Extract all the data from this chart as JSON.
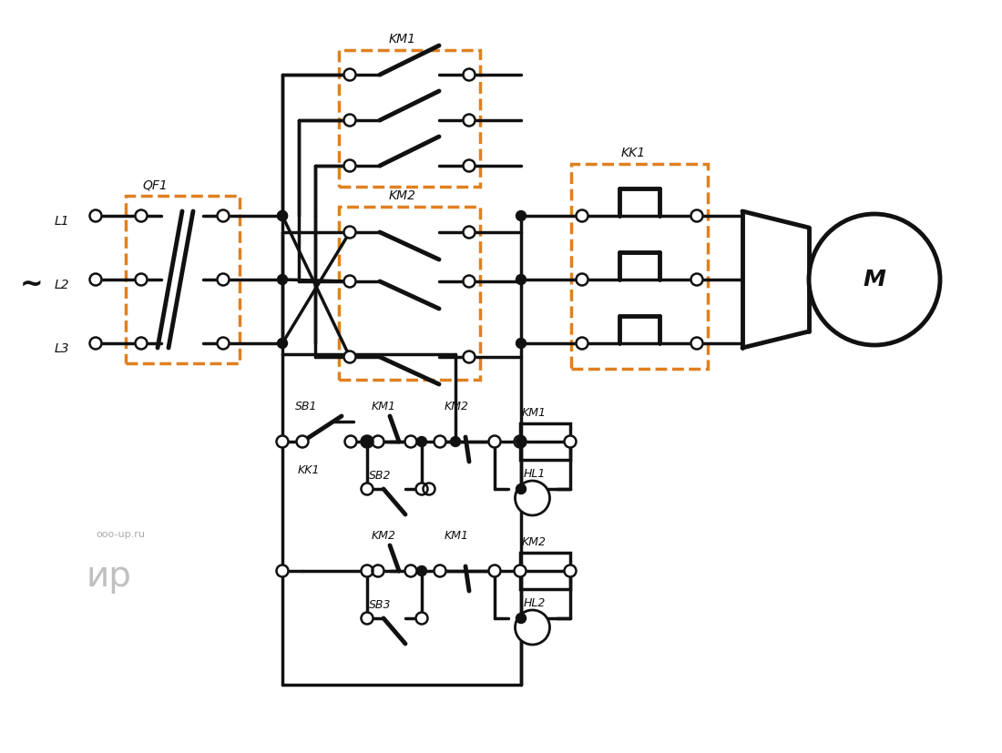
{
  "bg": "#ffffff",
  "lc": "#111111",
  "oc": "#E08020",
  "lw": 2.5,
  "tlw": 3.5,
  "dr": 0.055,
  "or_": 0.065,
  "figw": 11.0,
  "figh": 8.27,
  "xlim": [
    0,
    11.0
  ],
  "ylim": [
    0,
    8.27
  ]
}
